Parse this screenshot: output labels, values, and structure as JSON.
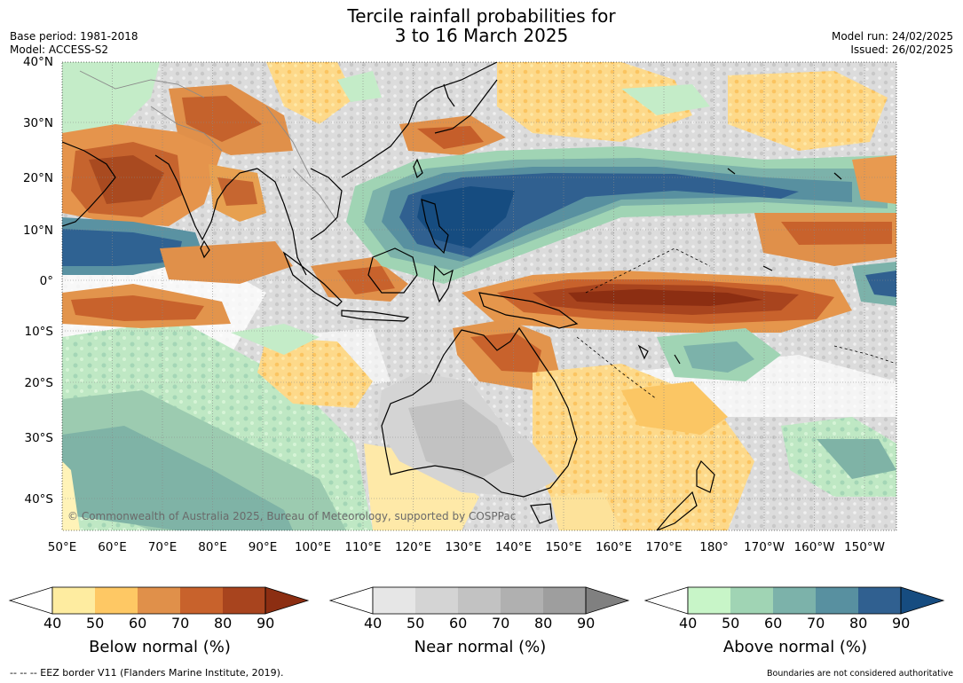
{
  "header": {
    "title_line1": "Tercile rainfall probabilities for",
    "title_line2": "3 to 16 March 2025",
    "base_period": "Base period: 1981-2018",
    "model": "Model: ACCESS-S2",
    "model_run": "Model run: 24/02/2025",
    "issued": "Issued: 26/02/2025"
  },
  "map": {
    "lat_labels": [
      "40°N",
      "30°N",
      "20°N",
      "10°N",
      "0°",
      "10°S",
      "20°S",
      "30°S",
      "40°S"
    ],
    "lon_labels": [
      "50°E",
      "60°E",
      "70°E",
      "80°E",
      "90°E",
      "100°E",
      "110°E",
      "120°E",
      "130°E",
      "140°E",
      "150°E",
      "160°E",
      "170°E",
      "180°",
      "170°W",
      "160°W",
      "150°W"
    ],
    "copyright": "© Commonwealth of Australia 2025, Bureau of Meteorology, supported by COSPPac"
  },
  "colorbars": [
    {
      "title": "Below normal (%)",
      "ticks": [
        "40",
        "50",
        "60",
        "70",
        "80",
        "90"
      ],
      "colors": [
        "#ffffff",
        "#feeca0",
        "#fec864",
        "#e0904a",
        "#c8622c",
        "#a8441e",
        "#8c2e12"
      ]
    },
    {
      "title": "Near normal (%)",
      "ticks": [
        "40",
        "50",
        "60",
        "70",
        "80",
        "90"
      ],
      "colors": [
        "#ffffff",
        "#e6e6e6",
        "#d4d4d4",
        "#c2c2c2",
        "#b0b0b0",
        "#9e9e9e",
        "#808080"
      ]
    },
    {
      "title": "Above normal (%)",
      "ticks": [
        "40",
        "50",
        "60",
        "70",
        "80",
        "90"
      ],
      "colors": [
        "#ffffff",
        "#c8f5c8",
        "#a0d4b4",
        "#7cb2aa",
        "#5890a0",
        "#306090",
        "#164c80"
      ]
    }
  ],
  "footer": {
    "eez": "--  --  -- EEZ border V11 (Flanders Marine Institute, 2019).",
    "boundaries": "Boundaries are not considered authoritative"
  }
}
